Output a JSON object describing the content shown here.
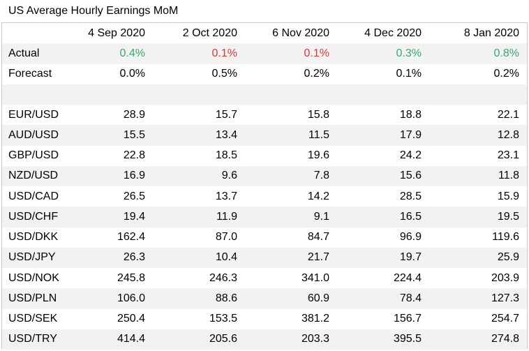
{
  "title": "US Average Hourly Earnings MoM",
  "columns": [
    "4 Sep 2020",
    "2 Oct 2020",
    "6 Nov 2020",
    "4 Dec 2020",
    "8 Jan 2020"
  ],
  "colors": {
    "up": "#3aa76d",
    "down": "#d33a3a",
    "shade": "#f2f2f2"
  },
  "actual": {
    "label": "Actual",
    "values": [
      "0.4%",
      "0.1%",
      "0.1%",
      "0.3%",
      "0.8%"
    ],
    "directions": [
      "up",
      "down",
      "down",
      "up",
      "up"
    ]
  },
  "forecast": {
    "label": "Forecast",
    "values": [
      "0.0%",
      "0.5%",
      "0.2%",
      "0.1%",
      "0.2%"
    ]
  },
  "pairs": [
    {
      "label": "EUR/USD",
      "values": [
        "28.9",
        "15.7",
        "15.8",
        "18.8",
        "22.1"
      ]
    },
    {
      "label": "AUD/USD",
      "values": [
        "15.5",
        "13.4",
        "11.5",
        "17.9",
        "12.8"
      ]
    },
    {
      "label": "GBP/USD",
      "values": [
        "22.8",
        "18.5",
        "19.6",
        "24.2",
        "23.1"
      ]
    },
    {
      "label": "NZD/USD",
      "values": [
        "16.9",
        "9.6",
        "7.8",
        "15.6",
        "11.8"
      ]
    },
    {
      "label": "USD/CAD",
      "values": [
        "26.5",
        "13.7",
        "14.2",
        "28.5",
        "15.9"
      ]
    },
    {
      "label": "USD/CHF",
      "values": [
        "19.4",
        "11.9",
        "9.1",
        "16.5",
        "19.5"
      ]
    },
    {
      "label": "USD/DKK",
      "values": [
        "162.4",
        "87.0",
        "84.7",
        "96.9",
        "119.6"
      ]
    },
    {
      "label": "USD/JPY",
      "values": [
        "26.3",
        "10.4",
        "21.7",
        "19.7",
        "25.9"
      ]
    },
    {
      "label": "USD/NOK",
      "values": [
        "245.8",
        "246.3",
        "341.0",
        "224.4",
        "203.9"
      ]
    },
    {
      "label": "USD/PLN",
      "values": [
        "106.0",
        "88.6",
        "60.9",
        "78.4",
        "127.3"
      ]
    },
    {
      "label": "USD/SEK",
      "values": [
        "250.4",
        "153.5",
        "381.2",
        "156.7",
        "254.7"
      ]
    },
    {
      "label": "USD/TRY",
      "values": [
        "414.4",
        "205.6",
        "203.3",
        "395.5",
        "274.8"
      ]
    }
  ]
}
